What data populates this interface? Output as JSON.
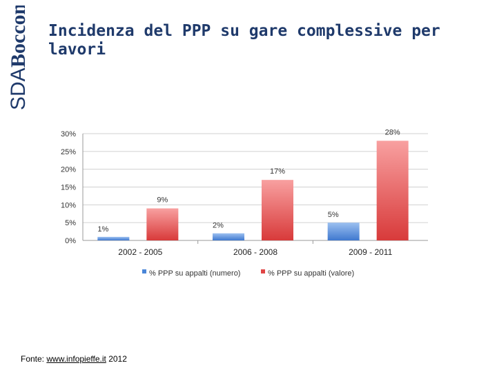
{
  "brand": {
    "name_line1": "SDA",
    "name_line2": "Bocconi",
    "color": "#1f3a6b"
  },
  "title": "Incidenza del PPP su gare complessive per lavori",
  "source": {
    "prefix": "Fonte: ",
    "link": "www.infopieffe.it",
    "suffix": " 2012"
  },
  "colors": {
    "series_blue": "#4a86d8",
    "series_red": "#e04545"
  },
  "chart_data": {
    "type": "bar",
    "title": "",
    "categories": [
      "2002 - 2005",
      "2006 - 2008",
      "2009 - 2011"
    ],
    "series": [
      {
        "name": "% PPP  su appalti (numero)",
        "values": [
          1,
          2,
          5
        ],
        "labels": [
          "1%",
          "2%",
          "5%"
        ]
      },
      {
        "name": "% PPP su appalti (valore)",
        "values": [
          9,
          17,
          28
        ],
        "labels": [
          "9%",
          "17%",
          "28%"
        ]
      }
    ],
    "ylim": [
      0,
      30
    ],
    "yticks": [
      "0%",
      "5%",
      "10%",
      "15%",
      "20%",
      "25%",
      "30%"
    ],
    "grid": true,
    "legend": "bottom"
  }
}
